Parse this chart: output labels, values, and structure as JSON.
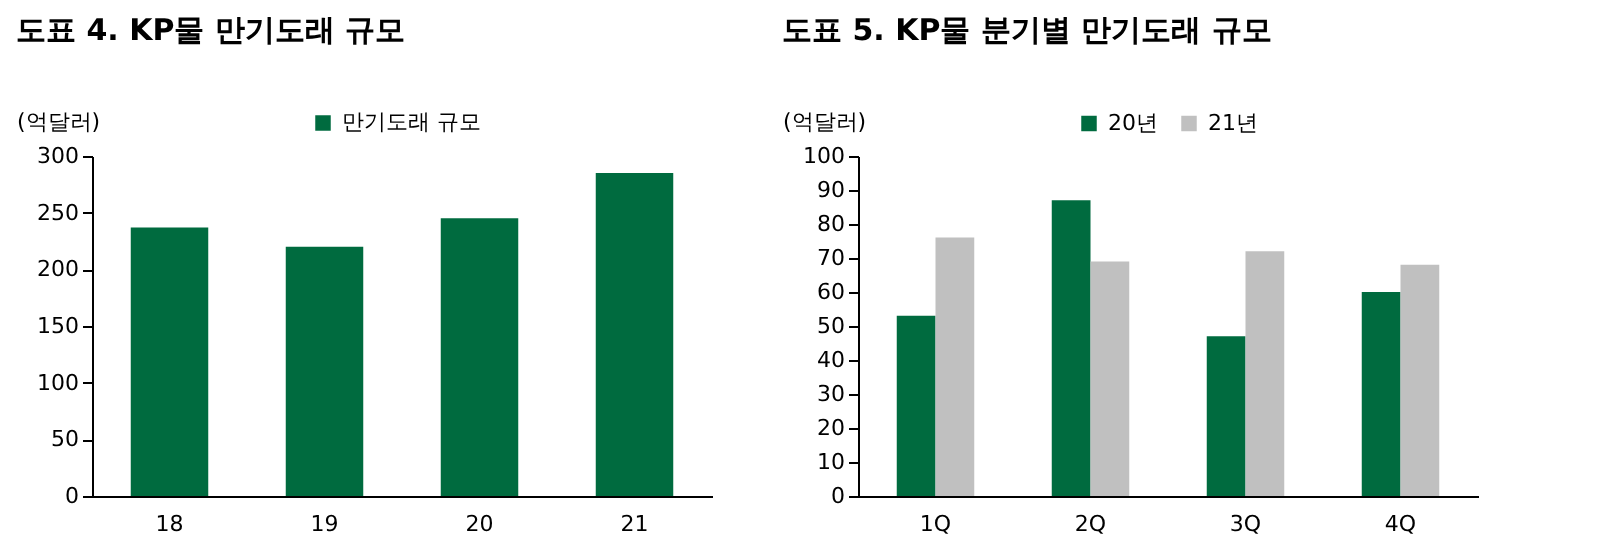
{
  "chart_data": [
    {
      "type": "bar",
      "title": "도표 4. KP물 만기도래 규모",
      "ylabel": "(억달러)",
      "categories": [
        "18",
        "19",
        "20",
        "21"
      ],
      "ylim": [
        0,
        300
      ],
      "yticks": [
        0,
        50,
        100,
        150,
        200,
        250,
        300
      ],
      "legend": "top",
      "grid": false,
      "series": [
        {
          "name": "만기도래 규모",
          "color": "#006b3f",
          "values": [
            237,
            220,
            245,
            285
          ]
        }
      ]
    },
    {
      "type": "bar",
      "title": "도표 5. KP물 분기별 만기도래 규모",
      "ylabel": "(억달러)",
      "categories": [
        "1Q",
        "2Q",
        "3Q",
        "4Q"
      ],
      "ylim": [
        0,
        100
      ],
      "yticks": [
        0,
        10,
        20,
        30,
        40,
        50,
        60,
        70,
        80,
        90,
        100
      ],
      "legend": "top",
      "grid": false,
      "series": [
        {
          "name": "20년",
          "color": "#006b3f",
          "values": [
            53,
            87,
            47,
            60
          ]
        },
        {
          "name": "21년",
          "color": "#c0c0c0",
          "values": [
            76,
            69,
            72,
            68
          ]
        }
      ]
    }
  ]
}
